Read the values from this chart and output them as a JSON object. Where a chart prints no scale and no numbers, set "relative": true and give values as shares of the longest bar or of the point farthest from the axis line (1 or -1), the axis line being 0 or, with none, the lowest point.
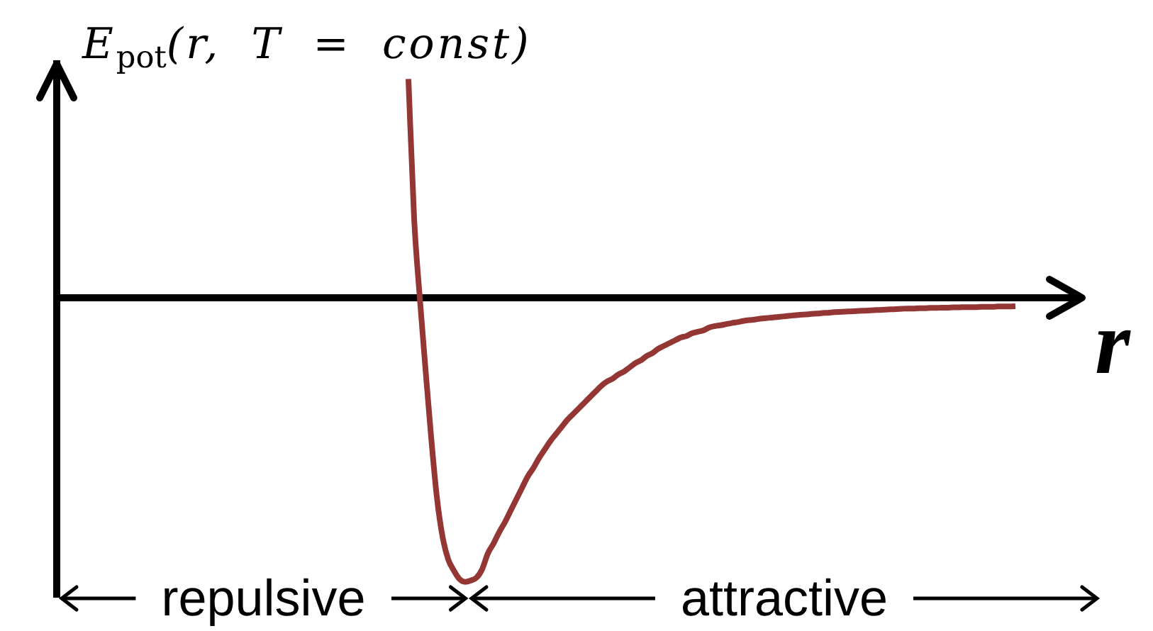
{
  "chart_data": {
    "type": "line",
    "relative": true,
    "ylabel": "E$_{pot}$(r, T = const)",
    "xlabel": "r",
    "annotations": [
      "repulsive",
      "attractive"
    ],
    "color": "#943634",
    "categories": [
      null,
      null,
      null,
      null,
      null,
      null,
      null,
      null,
      null,
      null,
      null,
      null,
      null,
      null,
      null,
      null,
      null,
      null,
      null,
      null,
      null,
      null,
      null,
      null,
      null,
      null,
      null,
      null,
      null,
      null,
      null,
      null,
      null,
      null,
      null,
      null,
      null,
      null,
      null,
      null,
      null,
      null,
      null,
      null,
      null,
      null,
      null,
      null,
      null,
      null,
      null,
      null,
      null,
      null,
      null,
      null,
      null,
      null,
      null,
      null,
      null,
      null,
      null,
      null,
      null,
      null,
      null,
      null,
      null,
      null,
      null,
      null,
      null,
      null,
      null,
      null,
      null,
      null,
      null,
      null,
      null,
      null,
      null,
      null,
      null,
      null,
      null,
      null,
      null,
      null,
      null,
      null,
      null,
      null,
      null,
      null,
      null,
      null,
      null,
      null,
      null,
      null,
      null,
      null,
      null,
      null,
      null,
      null,
      null,
      null,
      null,
      null,
      null,
      null,
      null,
      null,
      null,
      null,
      null,
      null,
      null,
      null,
      null,
      null,
      null,
      null,
      null,
      null,
      null,
      null,
      null,
      null,
      null,
      null,
      null,
      null,
      null,
      null,
      null,
      null,
      null,
      null,
      null,
      null,
      null,
      null,
      null,
      null,
      null,
      null,
      null,
      null,
      null,
      null,
      null,
      null,
      null,
      null,
      null,
      null,
      null,
      null,
      null,
      null,
      null,
      null,
      null,
      null,
      null,
      null,
      null,
      null,
      null,
      null,
      null,
      null,
      null,
      null,
      null,
      null,
      null
    ],
    "values": [
      null,
      null,
      null,
      null,
      null,
      null,
      null,
      null,
      null,
      null,
      null,
      null,
      null,
      null,
      null,
      null,
      null,
      null,
      null,
      null,
      null,
      null,
      null,
      null,
      null,
      null,
      null,
      null,
      null,
      null,
      null,
      null,
      null,
      null,
      null,
      null,
      null,
      null,
      null,
      null,
      null,
      null,
      null,
      null,
      null,
      null,
      null,
      null,
      null,
      null,
      null,
      null,
      null,
      null,
      null,
      null,
      null,
      null,
      null,
      null,
      null,
      null,
      0.77,
      0.28,
      0,
      -0.25,
      -0.49,
      -0.7,
      -0.84,
      -0.92,
      -0.96,
      -0.99,
      -1,
      -0.995,
      -0.985,
      -0.955,
      -0.9,
      -0.865,
      -0.825,
      -0.79,
      -0.75,
      -0.71,
      -0.67,
      -0.63,
      -0.6,
      -0.565,
      -0.535,
      -0.505,
      -0.48,
      -0.455,
      -0.43,
      -0.41,
      -0.39,
      -0.37,
      -0.35,
      -0.33,
      -0.31,
      -0.295,
      -0.285,
      -0.27,
      -0.26,
      -0.245,
      -0.23,
      -0.22,
      -0.205,
      -0.195,
      -0.18,
      -0.17,
      -0.16,
      -0.15,
      -0.14,
      -0.135,
      -0.125,
      -0.12,
      -0.115,
      -0.105,
      -0.1,
      -0.097,
      -0.093,
      -0.089,
      -0.086,
      -0.082,
      -0.079,
      -0.077,
      -0.074,
      -0.072,
      -0.07,
      -0.068,
      -0.066,
      -0.064,
      -0.062,
      -0.06,
      -0.059,
      -0.057,
      -0.056,
      -0.054,
      -0.053,
      -0.051,
      -0.05,
      -0.049,
      -0.048,
      -0.047,
      -0.046,
      -0.045,
      -0.044,
      -0.043,
      -0.042,
      -0.041,
      -0.04,
      -0.039,
      -0.038,
      -0.038,
      -0.037,
      -0.037,
      -0.036,
      -0.036,
      -0.035,
      -0.035,
      -0.034,
      -0.034,
      -0.033,
      -0.033,
      -0.033,
      -0.032,
      -0.032,
      -0.032,
      -0.031,
      -0.031,
      -0.031,
      -0.03,
      null,
      null,
      null,
      null,
      null,
      null,
      null,
      null,
      null,
      null,
      null
    ]
  }
}
